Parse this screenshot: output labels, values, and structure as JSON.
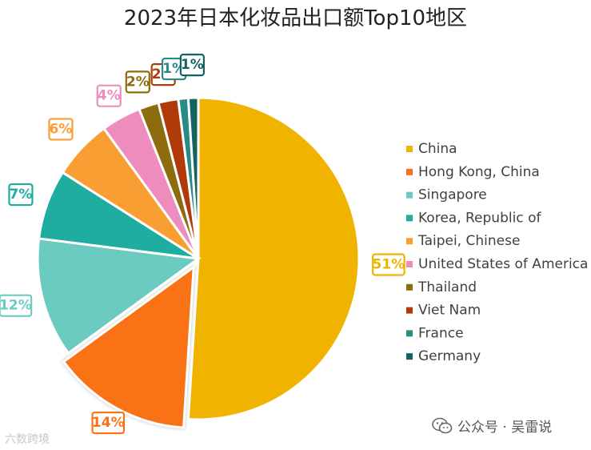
{
  "chart_data": {
    "type": "pie",
    "title": "2023年日本化妆品出口额Top10地区",
    "categories": [
      "China",
      "Hong Kong, China",
      "Singapore",
      "Korea, Republic of",
      "Taipei, Chinese",
      "United States of America",
      "Thailand",
      "Viet Nam",
      "France",
      "Germany"
    ],
    "values": [
      51,
      14,
      12,
      7,
      6,
      4,
      2,
      2,
      1,
      1
    ],
    "labels": [
      "51%",
      "14%",
      "12%",
      "7%",
      "6%",
      "4%",
      "2%",
      "2%",
      "1%",
      "1%"
    ],
    "colors": [
      "#f0b400",
      "#f97316",
      "#6ccbc0",
      "#1fada0",
      "#f89e32",
      "#ee8cbe",
      "#8c6c0c",
      "#b03a0a",
      "#2a8a86",
      "#136360"
    ],
    "exploded": [
      "Hong Kong, China"
    ],
    "legend_position": "right"
  },
  "watermark": {
    "left_text": "六数跨境",
    "right_text": "公众号 · 吴雷说",
    "icon": "wechat-icon"
  }
}
